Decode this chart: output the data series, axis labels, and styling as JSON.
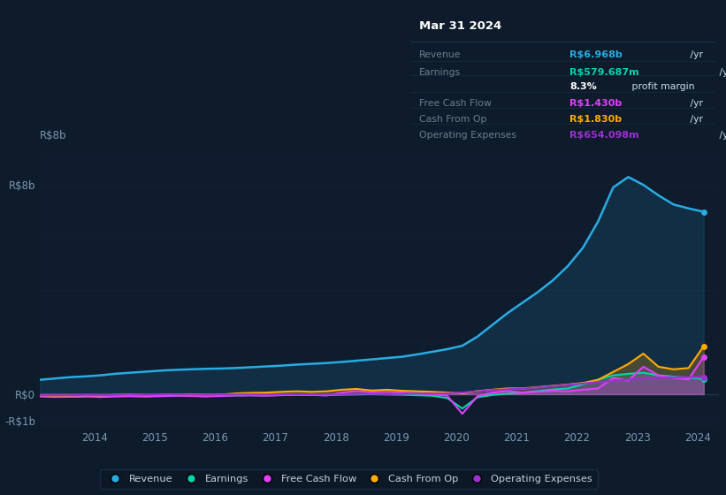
{
  "bg_color": "#0d1b2a",
  "chart_bg": "#0e1c2e",
  "grid_color": "#162336",
  "title_date": "Mar 31 2024",
  "info_box": {
    "facecolor": "#050d18",
    "border_color": "#1a2a3a",
    "title_color": "#ffffff",
    "label_color": "#6b7e94",
    "unit_color": "#ccddee",
    "margin_color": "#8b9fb7",
    "rows": [
      {
        "label": "Revenue",
        "value": "R$6.968b",
        "unit": " /yr",
        "value_color": "#29abe2"
      },
      {
        "label": "Earnings",
        "value": "R$579.687m",
        "unit": " /yr",
        "value_color": "#00d4aa"
      },
      {
        "label": "",
        "value": "8.3%",
        "unit": " profit margin",
        "value_color": "#ffffff"
      },
      {
        "label": "Free Cash Flow",
        "value": "R$1.430b",
        "unit": " /yr",
        "value_color": "#e040fb"
      },
      {
        "label": "Cash From Op",
        "value": "R$1.830b",
        "unit": " /yr",
        "value_color": "#ffaa00"
      },
      {
        "label": "Operating Expenses",
        "value": "R$654.098m",
        "unit": " /yr",
        "value_color": "#9b30d0"
      }
    ]
  },
  "ylim": [
    -1.3,
    9.2
  ],
  "xlim": [
    2013.1,
    2024.35
  ],
  "ytick_vals": [
    -1.0,
    0.0,
    2.0,
    4.0,
    6.0,
    8.0
  ],
  "ytick_labels": [
    "-R$1b",
    "R$0",
    "",
    "",
    "",
    "R$8b"
  ],
  "xtick_vals": [
    2014,
    2015,
    2016,
    2017,
    2018,
    2019,
    2020,
    2021,
    2022,
    2023,
    2024
  ],
  "colors": {
    "revenue": "#29abe2",
    "earnings": "#00d4aa",
    "fcf": "#e040fb",
    "cfo": "#ffaa00",
    "opex": "#9b30d0"
  },
  "legend": [
    {
      "label": "Revenue",
      "color": "#29abe2"
    },
    {
      "label": "Earnings",
      "color": "#00d4aa"
    },
    {
      "label": "Free Cash Flow",
      "color": "#e040fb"
    },
    {
      "label": "Cash From Op",
      "color": "#ffaa00"
    },
    {
      "label": "Operating Expenses",
      "color": "#9b30d0"
    }
  ],
  "series": {
    "years": [
      2013.1,
      2013.35,
      2013.6,
      2013.85,
      2014.1,
      2014.35,
      2014.6,
      2014.85,
      2015.1,
      2015.35,
      2015.6,
      2015.85,
      2016.1,
      2016.35,
      2016.6,
      2016.85,
      2017.1,
      2017.35,
      2017.6,
      2017.85,
      2018.1,
      2018.35,
      2018.6,
      2018.85,
      2019.1,
      2019.35,
      2019.6,
      2019.85,
      2020.1,
      2020.35,
      2020.6,
      2020.85,
      2021.1,
      2021.35,
      2021.6,
      2021.85,
      2022.1,
      2022.35,
      2022.6,
      2022.85,
      2023.1,
      2023.35,
      2023.6,
      2023.85,
      2024.1
    ],
    "revenue": [
      0.55,
      0.6,
      0.65,
      0.68,
      0.72,
      0.78,
      0.82,
      0.86,
      0.9,
      0.93,
      0.95,
      0.97,
      0.98,
      1.0,
      1.03,
      1.06,
      1.09,
      1.13,
      1.16,
      1.19,
      1.23,
      1.28,
      1.33,
      1.38,
      1.43,
      1.52,
      1.62,
      1.72,
      1.85,
      2.2,
      2.65,
      3.1,
      3.5,
      3.9,
      4.35,
      4.9,
      5.6,
      6.6,
      7.9,
      8.3,
      8.0,
      7.6,
      7.25,
      7.1,
      6.97
    ],
    "earnings": [
      -0.06,
      -0.09,
      -0.1,
      -0.09,
      -0.07,
      -0.06,
      -0.07,
      -0.08,
      -0.06,
      -0.05,
      -0.05,
      -0.07,
      -0.06,
      -0.05,
      -0.04,
      -0.05,
      -0.03,
      -0.02,
      -0.03,
      -0.04,
      -0.02,
      -0.01,
      0.0,
      -0.01,
      -0.02,
      -0.04,
      -0.06,
      -0.15,
      -0.55,
      -0.12,
      -0.03,
      0.02,
      0.06,
      0.12,
      0.18,
      0.22,
      0.38,
      0.55,
      0.72,
      0.78,
      0.82,
      0.72,
      0.67,
      0.63,
      0.58
    ],
    "free_cash_flow": [
      -0.09,
      -0.11,
      -0.1,
      -0.08,
      -0.11,
      -0.09,
      -0.08,
      -0.09,
      -0.08,
      -0.06,
      -0.07,
      -0.09,
      -0.07,
      -0.05,
      -0.05,
      -0.06,
      -0.04,
      -0.02,
      -0.03,
      -0.05,
      0.06,
      0.12,
      0.07,
      0.09,
      0.06,
      0.03,
      -0.01,
      -0.06,
      -0.75,
      -0.08,
      0.06,
      0.12,
      0.06,
      0.09,
      0.13,
      0.11,
      0.17,
      0.22,
      0.62,
      0.52,
      1.05,
      0.72,
      0.62,
      0.57,
      1.43
    ],
    "cash_from_op": [
      -0.04,
      -0.07,
      -0.05,
      -0.04,
      -0.05,
      -0.03,
      -0.02,
      -0.04,
      -0.03,
      -0.01,
      -0.01,
      -0.03,
      -0.02,
      0.03,
      0.05,
      0.06,
      0.09,
      0.11,
      0.09,
      0.11,
      0.17,
      0.2,
      0.14,
      0.17,
      0.13,
      0.11,
      0.09,
      0.06,
      0.03,
      0.12,
      0.17,
      0.22,
      0.22,
      0.27,
      0.32,
      0.37,
      0.43,
      0.55,
      0.85,
      1.15,
      1.55,
      1.05,
      0.95,
      1.0,
      1.83
    ],
    "op_expenses": [
      -0.04,
      -0.05,
      -0.04,
      -0.03,
      -0.04,
      -0.03,
      -0.02,
      -0.03,
      -0.02,
      -0.01,
      -0.02,
      -0.03,
      -0.02,
      -0.01,
      -0.01,
      -0.02,
      -0.01,
      0.0,
      -0.01,
      -0.01,
      -0.01,
      0.01,
      0.01,
      0.0,
      0.01,
      0.02,
      0.02,
      0.03,
      0.06,
      0.11,
      0.16,
      0.19,
      0.21,
      0.26,
      0.31,
      0.36,
      0.41,
      0.46,
      0.51,
      0.56,
      0.61,
      0.63,
      0.64,
      0.65,
      0.65
    ]
  }
}
